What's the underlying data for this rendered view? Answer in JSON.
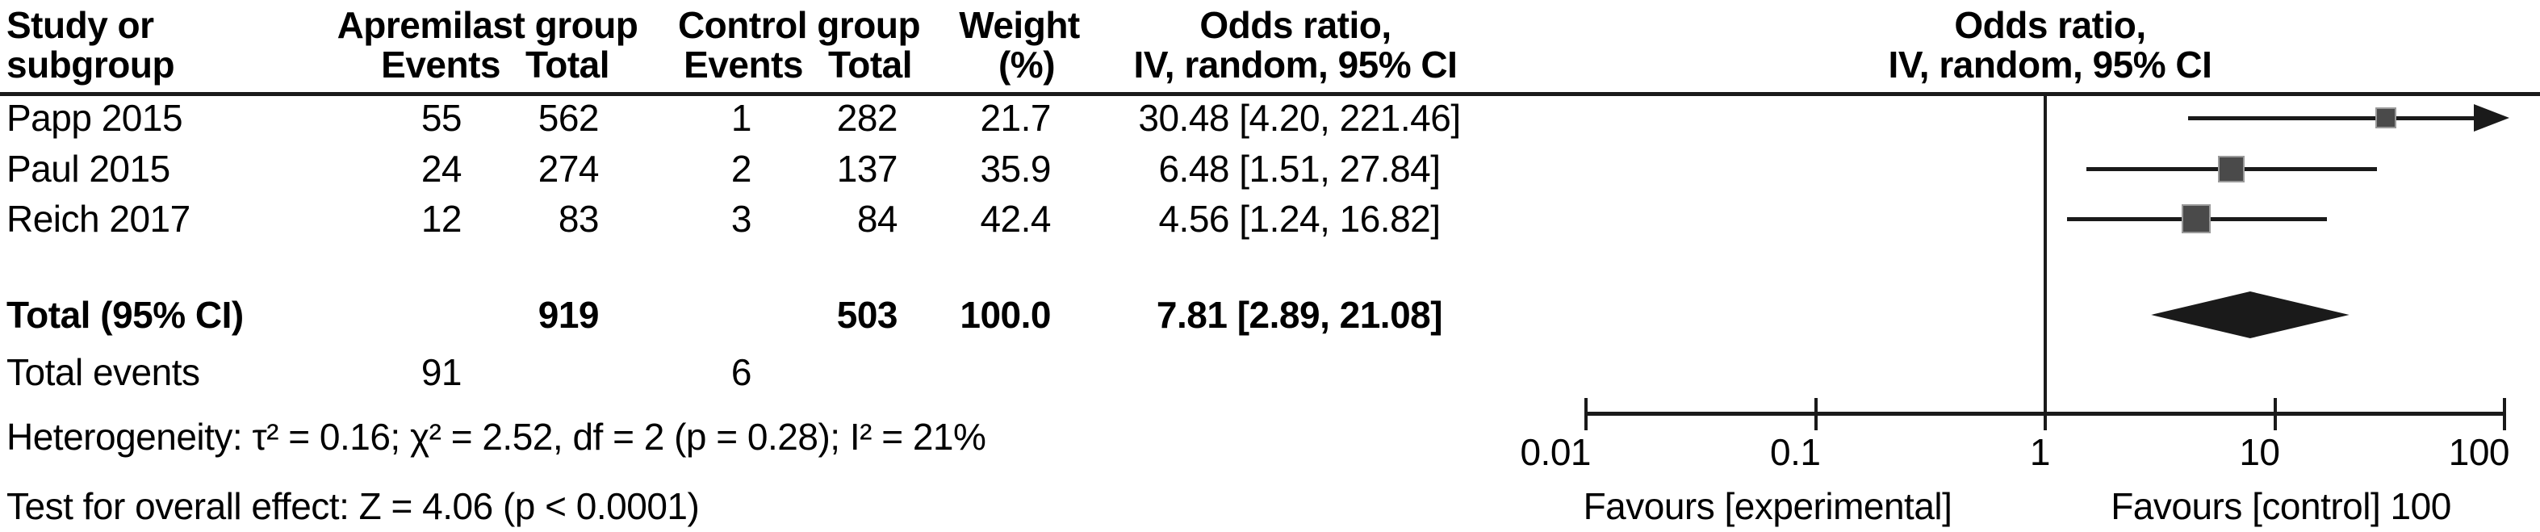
{
  "colors": {
    "text": "#000000",
    "line": "#1a1a1a",
    "marker_fill": "#4a4a4a",
    "marker_border": "#9a9a9a",
    "background": "#ffffff"
  },
  "table": {
    "header": {
      "study_col_line1": "Study or",
      "study_col_line2": "subgroup",
      "exp_group": "Apremilast group",
      "ctrl_group": "Control group",
      "events": "Events",
      "total": "Total",
      "weight_line1": "Weight",
      "weight_line2": "(%)",
      "or_col_line1": "Odds ratio,",
      "or_col_line2": "IV, random, 95% CI"
    },
    "rows": [
      {
        "study": "Papp 2015",
        "exp_events": "55",
        "exp_total": "562",
        "ctrl_events": "1",
        "ctrl_total": "282",
        "weight": "21.7",
        "or_ci": "30.48 [4.20, 221.46]"
      },
      {
        "study": "Paul 2015",
        "exp_events": "24",
        "exp_total": "274",
        "ctrl_events": "2",
        "ctrl_total": "137",
        "weight": "35.9",
        "or_ci": "6.48 [1.51, 27.84]"
      },
      {
        "study": "Reich 2017",
        "exp_events": "12",
        "exp_total": "83",
        "ctrl_events": "3",
        "ctrl_total": "84",
        "weight": "42.4",
        "or_ci": "4.56 [1.24, 16.82]"
      }
    ],
    "total_row": {
      "label": "Total (95% CI)",
      "exp_total": "919",
      "ctrl_total": "503",
      "weight": "100.0",
      "or_ci": "7.81 [2.89, 21.08]"
    },
    "total_events_row": {
      "label": "Total events",
      "exp_events": "91",
      "ctrl_events": "6"
    },
    "heterogeneity": "Heterogeneity: τ² = 0.16; χ² = 2.52, df = 2 (p = 0.28); I² = 21%",
    "overall_effect": "Test for overall effect: Z = 4.06 (p < 0.0001)"
  },
  "plot": {
    "header_line1": "Odds ratio,",
    "header_line2": "IV, random, 95% CI",
    "axis_ticks": [
      "0.01",
      "0.1",
      "1",
      "10",
      "100"
    ],
    "favours_left": "Favours [experimental]",
    "favours_right": "Favours [control] 100"
  },
  "chart_data": {
    "type": "forest",
    "x_scale": "log",
    "xlim": [
      0.01,
      100
    ],
    "null_line_at": 1,
    "x_tick_values": [
      0.01,
      0.1,
      1,
      10,
      100
    ],
    "effect_measure": "Odds ratio, IV, random, 95% CI",
    "studies": [
      {
        "name": "Papp 2015",
        "or": 30.48,
        "ci_low": 4.2,
        "ci_high": 221.46,
        "weight_pct": 21.7,
        "ci_high_clipped": true
      },
      {
        "name": "Paul 2015",
        "or": 6.48,
        "ci_low": 1.51,
        "ci_high": 27.84,
        "weight_pct": 35.9,
        "ci_high_clipped": false
      },
      {
        "name": "Reich 2017",
        "or": 4.56,
        "ci_low": 1.24,
        "ci_high": 16.82,
        "weight_pct": 42.4,
        "ci_high_clipped": false
      }
    ],
    "total": {
      "label": "Total (95% CI)",
      "or": 7.81,
      "ci_low": 2.89,
      "ci_high": 21.08,
      "weight_pct": 100.0
    }
  }
}
